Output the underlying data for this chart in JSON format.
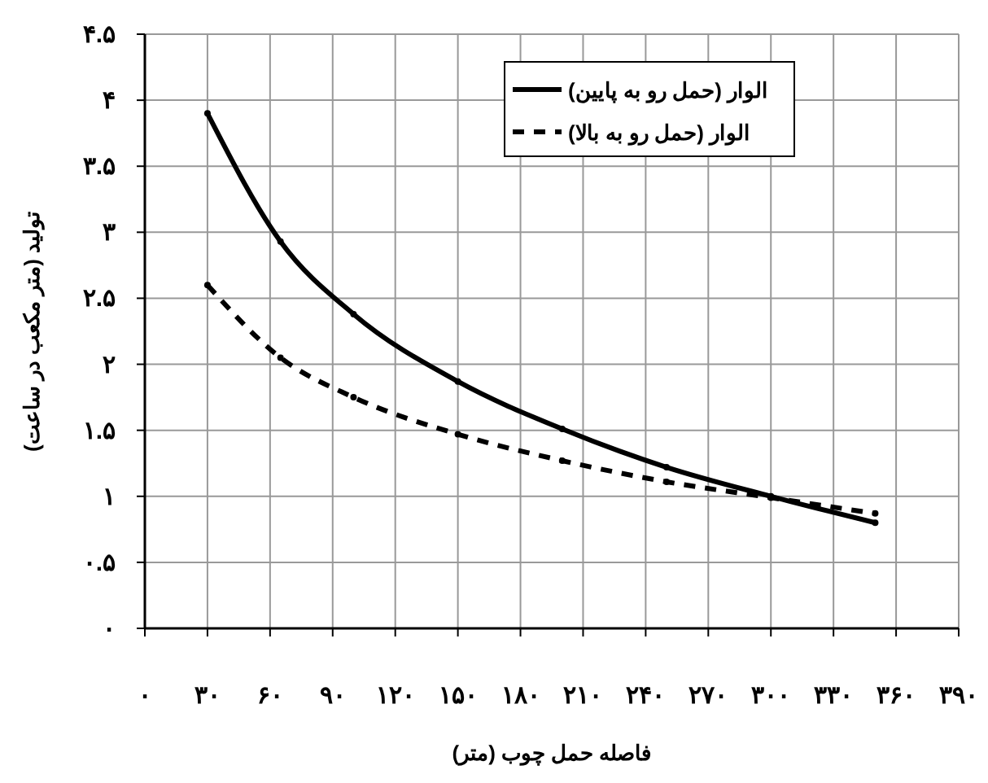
{
  "chart_data": {
    "type": "line",
    "xlabel": "فاصله حمل چوب (متر)",
    "ylabel": "تولید (متر مکعب در ساعت)",
    "xlim": [
      0,
      390
    ],
    "ylim": [
      0,
      4.5
    ],
    "xticks": [
      {
        "value": 0,
        "label": "۰"
      },
      {
        "value": 30,
        "label": "۳۰"
      },
      {
        "value": 60,
        "label": "۶۰"
      },
      {
        "value": 90,
        "label": "۹۰"
      },
      {
        "value": 120,
        "label": "۱۲۰"
      },
      {
        "value": 150,
        "label": "۱۵۰"
      },
      {
        "value": 180,
        "label": "۱۸۰"
      },
      {
        "value": 210,
        "label": "۲۱۰"
      },
      {
        "value": 240,
        "label": "۲۴۰"
      },
      {
        "value": 270,
        "label": "۲۷۰"
      },
      {
        "value": 300,
        "label": "۳۰۰"
      },
      {
        "value": 330,
        "label": "۳۳۰"
      },
      {
        "value": 360,
        "label": "۳۶۰"
      },
      {
        "value": 390,
        "label": "۳۹۰"
      }
    ],
    "yticks": [
      {
        "value": 0,
        "label": "۰"
      },
      {
        "value": 0.5,
        "label": "۰.۵"
      },
      {
        "value": 1,
        "label": "۱"
      },
      {
        "value": 1.5,
        "label": "۱.۵"
      },
      {
        "value": 2,
        "label": "۲"
      },
      {
        "value": 2.5,
        "label": "۲.۵"
      },
      {
        "value": 3,
        "label": "۳"
      },
      {
        "value": 3.5,
        "label": "۳.۵"
      },
      {
        "value": 4,
        "label": "۴"
      },
      {
        "value": 4.5,
        "label": "۴.۵"
      }
    ],
    "x": [
      30,
      65,
      100,
      150,
      200,
      250,
      300,
      350
    ],
    "series": [
      {
        "name": "الوار (حمل رو به پایین)",
        "color": "#000000",
        "line_style": "solid",
        "values": [
          3.9,
          2.93,
          2.38,
          1.87,
          1.51,
          1.22,
          1.0,
          0.8
        ]
      },
      {
        "name": "الوار (حمل رو به بالا)",
        "color": "#000000",
        "line_style": "dashed",
        "values": [
          2.6,
          2.05,
          1.75,
          1.47,
          1.27,
          1.11,
          0.99,
          0.87
        ]
      }
    ],
    "grid": true,
    "legend": "top right",
    "marker": "circle"
  }
}
